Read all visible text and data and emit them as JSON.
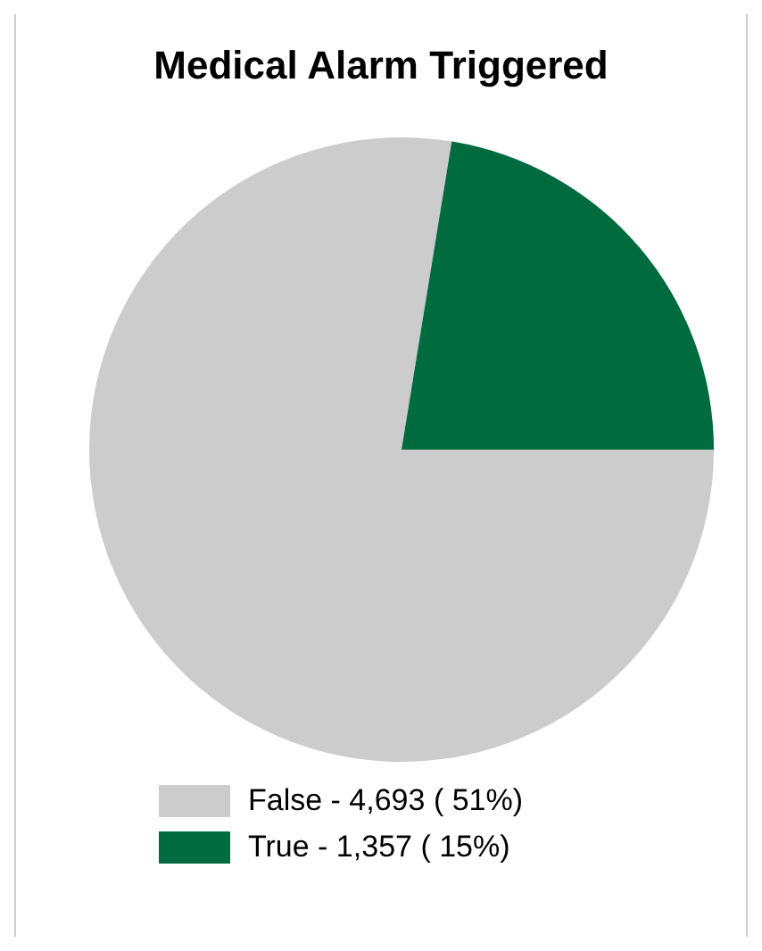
{
  "chart_data": {
    "type": "pie",
    "title": "Medical Alarm Triggered",
    "categories": [
      "False",
      "True"
    ],
    "values": [
      4693,
      1357
    ],
    "colors": [
      "#cccccc",
      "#006b3f"
    ],
    "value_labels": [
      "4,693 ( 51%)",
      "1,357 ( 15%)"
    ],
    "legend": "bottom"
  }
}
